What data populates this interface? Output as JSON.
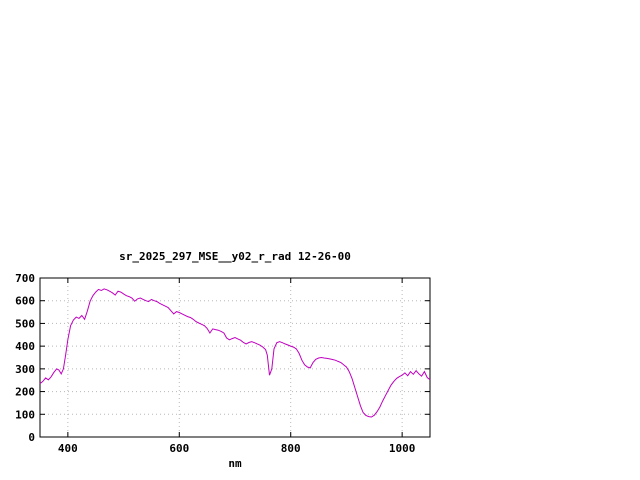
{
  "page": {
    "background": "#ffffff"
  },
  "chart_data": {
    "type": "line",
    "title": "sr_2025_297_MSE__y02_r_rad 12-26-00",
    "xlabel": "nm",
    "ylabel": "",
    "xlim": [
      350,
      1050
    ],
    "ylim": [
      0,
      700
    ],
    "xticks": [
      400,
      600,
      800,
      1000
    ],
    "yticks": [
      0,
      100,
      200,
      300,
      400,
      500,
      600,
      700
    ],
    "grid": true,
    "legend": "none",
    "line_color": "#c000c0",
    "x": [
      350,
      355,
      360,
      365,
      370,
      375,
      380,
      384,
      388,
      392,
      396,
      400,
      405,
      410,
      415,
      420,
      425,
      430,
      435,
      440,
      445,
      450,
      455,
      460,
      465,
      470,
      475,
      480,
      485,
      490,
      495,
      500,
      505,
      510,
      515,
      520,
      525,
      530,
      535,
      540,
      545,
      550,
      555,
      560,
      565,
      570,
      575,
      580,
      585,
      590,
      595,
      600,
      605,
      610,
      615,
      620,
      625,
      630,
      635,
      640,
      645,
      650,
      655,
      660,
      665,
      670,
      675,
      680,
      685,
      690,
      695,
      700,
      705,
      710,
      715,
      720,
      725,
      730,
      735,
      740,
      745,
      750,
      755,
      758,
      762,
      766,
      770,
      775,
      780,
      785,
      790,
      795,
      800,
      805,
      810,
      815,
      820,
      825,
      830,
      835,
      840,
      845,
      850,
      855,
      860,
      865,
      870,
      875,
      880,
      885,
      890,
      895,
      900,
      905,
      910,
      915,
      920,
      925,
      930,
      935,
      940,
      945,
      950,
      955,
      960,
      965,
      970,
      975,
      980,
      985,
      990,
      995,
      1000,
      1005,
      1010,
      1015,
      1020,
      1025,
      1030,
      1035,
      1040,
      1045,
      1050
    ],
    "y": [
      235,
      245,
      260,
      252,
      265,
      285,
      300,
      295,
      278,
      300,
      360,
      430,
      490,
      515,
      528,
      522,
      535,
      518,
      555,
      598,
      622,
      638,
      650,
      645,
      652,
      648,
      642,
      635,
      625,
      642,
      638,
      630,
      622,
      618,
      612,
      598,
      608,
      612,
      606,
      600,
      596,
      606,
      600,
      596,
      588,
      582,
      576,
      570,
      556,
      542,
      552,
      548,
      542,
      536,
      530,
      526,
      518,
      508,
      502,
      496,
      490,
      478,
      458,
      476,
      473,
      470,
      465,
      458,
      436,
      428,
      433,
      438,
      432,
      426,
      416,
      410,
      416,
      420,
      415,
      410,
      404,
      396,
      385,
      360,
      272,
      300,
      388,
      415,
      420,
      415,
      410,
      405,
      400,
      396,
      388,
      368,
      338,
      318,
      308,
      304,
      328,
      342,
      348,
      350,
      348,
      346,
      344,
      341,
      338,
      333,
      328,
      318,
      308,
      288,
      258,
      218,
      178,
      138,
      108,
      95,
      90,
      88,
      96,
      112,
      132,
      158,
      182,
      205,
      228,
      245,
      258,
      266,
      272,
      282,
      270,
      288,
      276,
      292,
      278,
      268,
      288,
      262,
      252
    ]
  }
}
